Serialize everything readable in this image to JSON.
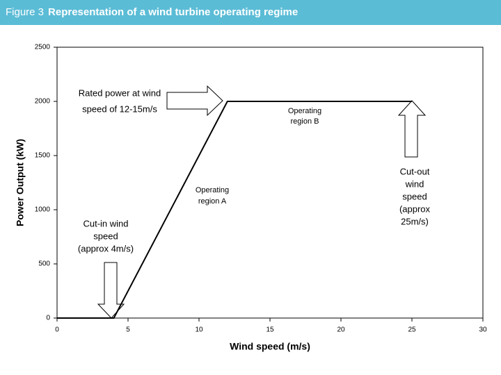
{
  "header": {
    "figure": "Figure 3",
    "title": "Representation of a wind turbine operating regime"
  },
  "chart_data": {
    "type": "line",
    "x_label": "Wind speed (m/s)",
    "y_label": "Power Output (kW)",
    "x": [
      0,
      4,
      12,
      25
    ],
    "values": [
      0,
      0,
      2000,
      2000
    ],
    "color": "#000000",
    "xlim": [
      0,
      30
    ],
    "xticks": [
      0,
      5,
      10,
      15,
      20,
      25,
      30
    ],
    "ylim": [
      0,
      2500
    ],
    "yticks": [
      0,
      500,
      1000,
      1500,
      2000,
      2500
    ],
    "grid": false,
    "annotations": [
      [
        "Rated power at wind",
        "speed of 12-15m/s"
      ],
      [
        "Operating",
        "region B"
      ],
      [
        "Operating",
        "region A"
      ],
      [
        "Cut-in wind",
        "speed",
        "(approx 4m/s)"
      ],
      [
        "Cut-out",
        "wind",
        "speed",
        "(approx",
        "25m/s)"
      ]
    ]
  }
}
